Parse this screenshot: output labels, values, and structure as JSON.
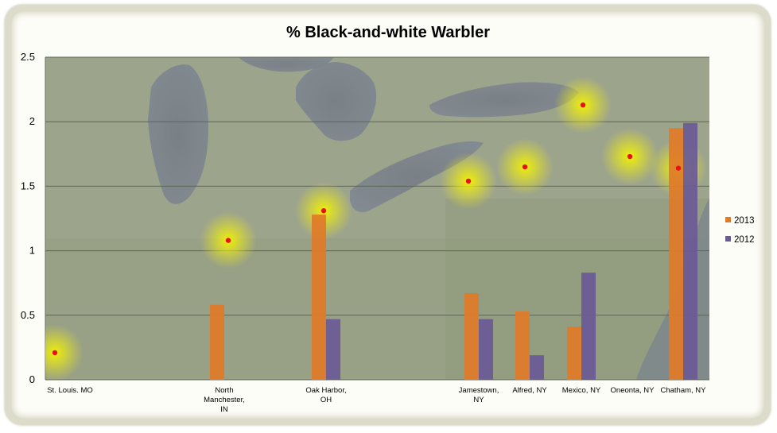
{
  "chart_data": {
    "type": "bar",
    "title": "% Black-and-white Warbler",
    "xlabel": "",
    "ylabel": "",
    "ylim": [
      0,
      2.5
    ],
    "yticks": [
      "0",
      "0.5",
      "1",
      "1.5",
      "2",
      "2.5"
    ],
    "grid": true,
    "legend_position": "right",
    "categories": [
      [
        "St. Louis. MO"
      ],
      [
        "North",
        "Manchester,",
        "IN"
      ],
      [
        "Oak Harbor,",
        "OH"
      ],
      [
        "Jamestown,",
        "NY"
      ],
      [
        "Alfred, NY"
      ],
      [
        "Mexico, NY"
      ],
      [
        "Oneonta, NY"
      ],
      [
        "Chatham, NY"
      ]
    ],
    "series": [
      {
        "name": "2013",
        "color": "#e07b28",
        "values": [
          0,
          0.58,
          1.28,
          0.67,
          0.53,
          0.41,
          0,
          1.95
        ]
      },
      {
        "name": "2012",
        "color": "#6b5a96",
        "values": [
          0,
          0,
          0.47,
          0.47,
          0.19,
          0.83,
          0,
          1.99
        ]
      }
    ],
    "map_markers": {
      "color": "#e8101a",
      "values": [
        0.21,
        1.08,
        1.31,
        1.54,
        1.65,
        2.13,
        1.73,
        1.64
      ]
    },
    "background": "map of the Great Lakes region"
  }
}
